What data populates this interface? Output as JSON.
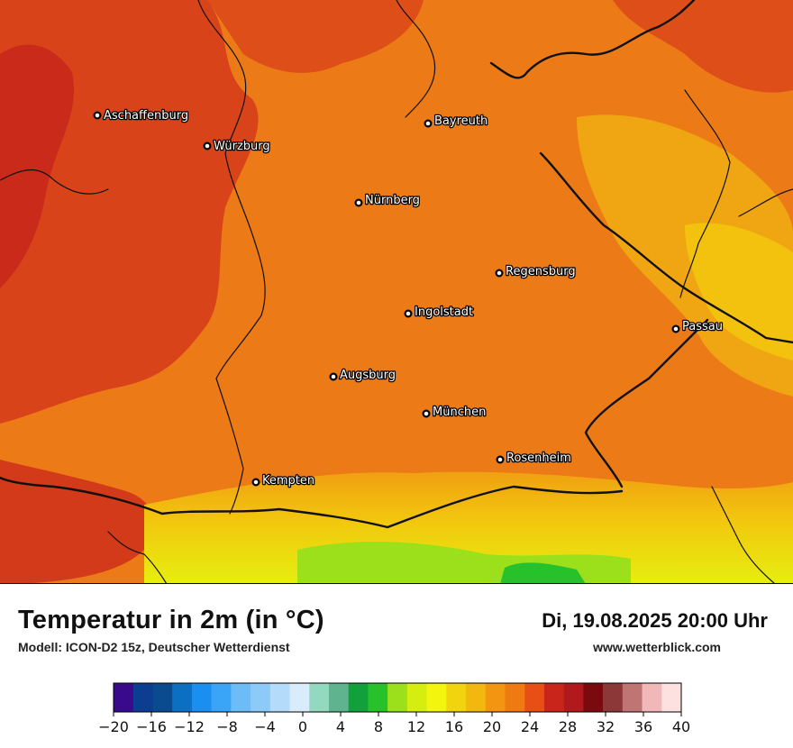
{
  "map": {
    "cities": [
      {
        "name": "Aschaffenburg"
      },
      {
        "name": "Würzburg"
      },
      {
        "name": "Bayreuth"
      },
      {
        "name": "Nürnberg"
      },
      {
        "name": "Regensburg"
      },
      {
        "name": "Ingolstadt"
      },
      {
        "name": "Passau"
      },
      {
        "name": "Augsburg"
      },
      {
        "name": "München"
      },
      {
        "name": "Rosenheim"
      },
      {
        "name": "Kempten"
      }
    ]
  },
  "info": {
    "title": "Temperatur in 2m (in °C)",
    "model": "Modell: ICON-D2 15z, Deutscher Wetterdienst",
    "datetime": "Di, 19.08.2025 20:00 Uhr",
    "website": "www.wetterblick.com"
  },
  "legend": {
    "ticks": [
      "−20",
      "−16",
      "−12",
      "−8",
      "−4",
      "0",
      "4",
      "8",
      "12",
      "16",
      "20",
      "24",
      "28",
      "32",
      "36",
      "40"
    ],
    "colors": [
      "#3a0a8c",
      "#0b3d91",
      "#0a4a8f",
      "#0b6fc2",
      "#1a8ff0",
      "#3aa4f7",
      "#6cbcf7",
      "#8ccaf8",
      "#b4dcfa",
      "#d8ecfc",
      "#93d9bf",
      "#5fb38f",
      "#11a03a",
      "#27c22b",
      "#9be01b",
      "#d5ee10",
      "#f3f50e",
      "#f2d40e",
      "#f2b80e",
      "#f39510",
      "#f07a12",
      "#e84f13",
      "#c9251a",
      "#b11a1d",
      "#7a0a0e",
      "#8c3838",
      "#c07474",
      "#f0b8b8",
      "#fde0e0"
    ]
  }
}
